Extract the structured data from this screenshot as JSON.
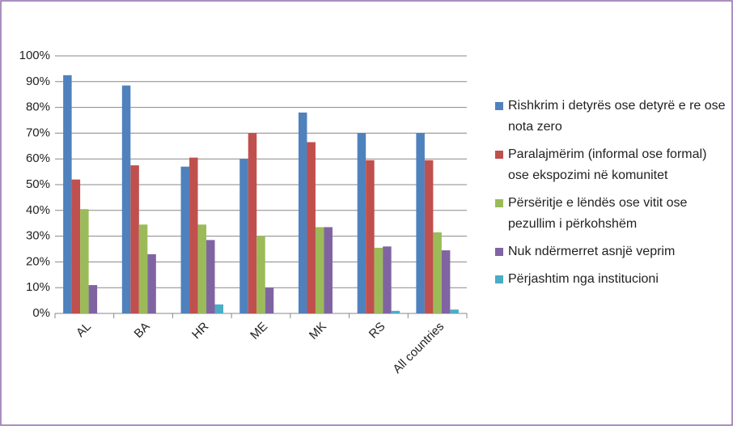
{
  "chart_data": {
    "type": "bar",
    "categories": [
      "AL",
      "BA",
      "HR",
      "ME",
      "MK",
      "RS",
      "All countries"
    ],
    "series": [
      {
        "name": "Rishkrim i detyrës ose detyrë e re ose nota zero",
        "color": "#4f81bd",
        "values": [
          92.5,
          88.5,
          57,
          60,
          78,
          70,
          70
        ]
      },
      {
        "name": "Paralajmërim (informal ose formal) ose ekspozimi në komunitet",
        "color": "#c0504d",
        "values": [
          52,
          57.5,
          60.5,
          70,
          66.5,
          59.5,
          59.5
        ]
      },
      {
        "name": "Përsëritje e lëndës ose vitit ose pezullim i përkohshëm",
        "color": "#9bbb59",
        "values": [
          40.5,
          34.5,
          34.5,
          30,
          33.5,
          25.5,
          31.5
        ]
      },
      {
        "name": "Nuk ndërmerret asnjë veprim",
        "color": "#8064a2",
        "values": [
          11,
          23,
          28.5,
          10,
          33.5,
          26,
          24.5
        ]
      },
      {
        "name": "Përjashtim nga institucioni",
        "color": "#4bacc6",
        "values": [
          0,
          0,
          3.5,
          0,
          0,
          1,
          1.5
        ]
      }
    ],
    "ylim": [
      0,
      100
    ],
    "yticks": [
      {
        "value": 0,
        "label": "0%"
      },
      {
        "value": 10,
        "label": "10%"
      },
      {
        "value": 20,
        "label": "20%"
      },
      {
        "value": 30,
        "label": "30%"
      },
      {
        "value": 40,
        "label": "40%"
      },
      {
        "value": 50,
        "label": "50%"
      },
      {
        "value": 60,
        "label": "60%"
      },
      {
        "value": 70,
        "label": "70%"
      },
      {
        "value": 80,
        "label": "80%"
      },
      {
        "value": 90,
        "label": "90%"
      },
      {
        "value": 100,
        "label": "100%"
      }
    ],
    "grid": true,
    "legend": "right"
  }
}
